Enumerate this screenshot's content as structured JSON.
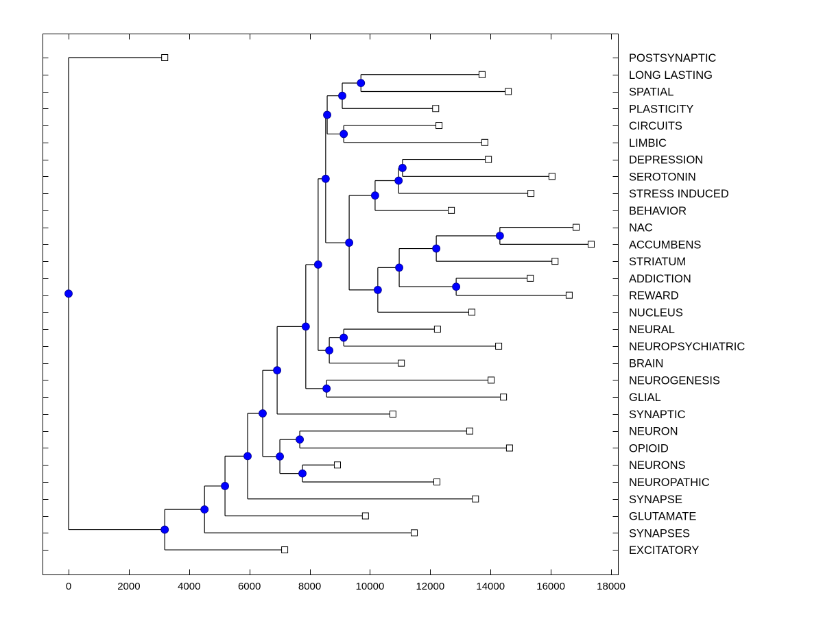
{
  "chart_data": {
    "type": "dendrogram",
    "title": "",
    "xlabel": "",
    "ylabel": "",
    "xlim": [
      -850,
      18250
    ],
    "x_ticks": [
      0,
      2000,
      4000,
      6000,
      8000,
      10000,
      12000,
      14000,
      16000,
      18000
    ],
    "x_tick_labels": [
      "0",
      "2000",
      "4000",
      "6000",
      "8000",
      "10000",
      "12000",
      "14000",
      "16000",
      "18000"
    ],
    "grid": false,
    "legend": null,
    "colors": {
      "internal_node": "#0000ff",
      "leaf_node": "#ffffff",
      "line": "#000000"
    },
    "leaves": [
      {
        "label": "POSTSYNAPTIC",
        "value": 3190
      },
      {
        "label": "LONG LASTING",
        "value": 13720
      },
      {
        "label": "SPATIAL",
        "value": 14590
      },
      {
        "label": "PLASTICITY",
        "value": 12180
      },
      {
        "label": "CIRCUITS",
        "value": 12290
      },
      {
        "label": "LIMBIC",
        "value": 13810
      },
      {
        "label": "DEPRESSION",
        "value": 13930
      },
      {
        "label": "SEROTONIN",
        "value": 16040
      },
      {
        "label": "STRESS INDUCED",
        "value": 15340
      },
      {
        "label": "BEHAVIOR",
        "value": 12700
      },
      {
        "label": "NAC",
        "value": 16840
      },
      {
        "label": "ACCUMBENS",
        "value": 17340
      },
      {
        "label": "STRIATUM",
        "value": 16140
      },
      {
        "label": "ADDICTION",
        "value": 15320
      },
      {
        "label": "REWARD",
        "value": 16610
      },
      {
        "label": "NUCLEUS",
        "value": 13380
      },
      {
        "label": "NEURAL",
        "value": 12240
      },
      {
        "label": "NEUROPSYCHIATRIC",
        "value": 14270
      },
      {
        "label": "BRAIN",
        "value": 11040
      },
      {
        "label": "NEUROGENESIS",
        "value": 14020
      },
      {
        "label": "GLIAL",
        "value": 14430
      },
      {
        "label": "SYNAPTIC",
        "value": 10760
      },
      {
        "label": "NEURON",
        "value": 13310
      },
      {
        "label": "OPIOID",
        "value": 14630
      },
      {
        "label": "NEURONS",
        "value": 8920
      },
      {
        "label": "NEUROPATHIC",
        "value": 12220
      },
      {
        "label": "SYNAPSE",
        "value": 13500
      },
      {
        "label": "GLUTAMATE",
        "value": 9850
      },
      {
        "label": "SYNAPSES",
        "value": 11470
      },
      {
        "label": "EXCITATORY",
        "value": 7170
      }
    ],
    "tree": {
      "value": 0,
      "children": [
        {
          "leaf": 0
        },
        {
          "value": 3190,
          "children": [
            {
              "value": 4510,
              "children": [
                {
                  "value": 5190,
                  "children": [
                    {
                      "value": 5940,
                      "children": [
                        {
                          "value": 6440,
                          "children": [
                            {
                              "value": 6920,
                              "children": [
                                {
                                  "value": 7870,
                                  "children": [
                                    {
                                      "value": 8280,
                                      "children": [
                                        {
                                          "value": 8530,
                                          "children": [
                                            {
                                              "value": 8580,
                                              "children": [
                                                {
                                                  "value": 9080,
                                                  "children": [
                                                    {
                                                      "value": 9700,
                                                      "children": [
                                                        {
                                                          "leaf": 1
                                                        },
                                                        {
                                                          "leaf": 2
                                                        }
                                                      ]
                                                    },
                                                    {
                                                      "leaf": 3
                                                    }
                                                  ]
                                                },
                                                {
                                                  "value": 9130,
                                                  "children": [
                                                    {
                                                      "leaf": 4
                                                    },
                                                    {
                                                      "leaf": 5
                                                    }
                                                  ]
                                                }
                                              ]
                                            },
                                            {
                                              "value": 9310,
                                              "children": [
                                                {
                                                  "value": 10170,
                                                  "children": [
                                                    {
                                                      "value": 10950,
                                                      "children": [
                                                        {
                                                          "value": 11080,
                                                          "children": [
                                                            {
                                                              "leaf": 6
                                                            },
                                                            {
                                                              "leaf": 7
                                                            }
                                                          ]
                                                        },
                                                        {
                                                          "leaf": 8
                                                        }
                                                      ]
                                                    },
                                                    {
                                                      "leaf": 9
                                                    }
                                                  ]
                                                },
                                                {
                                                  "value": 10260,
                                                  "children": [
                                                    {
                                                      "value": 10970,
                                                      "children": [
                                                        {
                                                          "value": 12200,
                                                          "children": [
                                                            {
                                                              "value": 14310,
                                                              "children": [
                                                                {
                                                                  "leaf": 10
                                                                },
                                                                {
                                                                  "leaf": 11
                                                                }
                                                              ]
                                                            },
                                                            {
                                                              "leaf": 12
                                                            }
                                                          ]
                                                        },
                                                        {
                                                          "value": 12860,
                                                          "children": [
                                                            {
                                                              "leaf": 13
                                                            },
                                                            {
                                                              "leaf": 14
                                                            }
                                                          ]
                                                        }
                                                      ]
                                                    },
                                                    {
                                                      "leaf": 15
                                                    }
                                                  ]
                                                }
                                              ]
                                            }
                                          ]
                                        },
                                        {
                                          "value": 8650,
                                          "children": [
                                            {
                                              "value": 9130,
                                              "children": [
                                                {
                                                  "leaf": 16
                                                },
                                                {
                                                  "leaf": 17
                                                }
                                              ]
                                            },
                                            {
                                              "leaf": 18
                                            }
                                          ]
                                        }
                                      ]
                                    },
                                    {
                                      "value": 8560,
                                      "children": [
                                        {
                                          "leaf": 19
                                        },
                                        {
                                          "leaf": 20
                                        }
                                      ]
                                    }
                                  ]
                                },
                                {
                                  "leaf": 21
                                }
                              ]
                            },
                            {
                              "value": 7010,
                              "children": [
                                {
                                  "value": 7670,
                                  "children": [
                                    {
                                      "leaf": 22
                                    },
                                    {
                                      "leaf": 23
                                    }
                                  ]
                                },
                                {
                                  "value": 7760,
                                  "children": [
                                    {
                                      "leaf": 24
                                    },
                                    {
                                      "leaf": 25
                                    }
                                  ]
                                }
                              ]
                            }
                          ]
                        },
                        {
                          "leaf": 26
                        }
                      ]
                    },
                    {
                      "leaf": 27
                    }
                  ]
                },
                {
                  "leaf": 28
                }
              ]
            },
            {
              "leaf": 29
            }
          ]
        }
      ]
    }
  }
}
